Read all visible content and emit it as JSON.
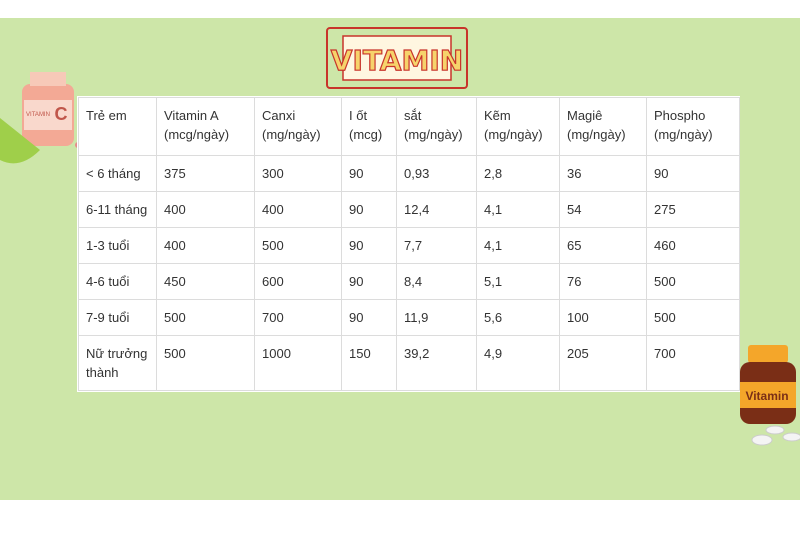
{
  "title": "VITAMIN",
  "decorations": {
    "left_bottle_label": "VITAMIN",
    "left_bottle_letter": "C",
    "right_bottle_label": "Vitamin"
  },
  "table": {
    "header": [
      "Trẻ em",
      "Vitamin A (mcg/ngày)",
      "Canxi (mg/ngày)",
      "I ốt (mcg)",
      "sắt (mg/ngày)",
      "Kẽm (mg/ngày)",
      "Magiê (mg/ngày)",
      "Phospho (mg/ngày)"
    ],
    "rows": [
      [
        "< 6 tháng",
        "375",
        "300",
        "90",
        "0,93",
        "2,8",
        "36",
        "90"
      ],
      [
        "6-11 tháng",
        "400",
        "400",
        "90",
        "12,4",
        "4,1",
        "54",
        "275"
      ],
      [
        "1-3 tuổi",
        "400",
        "500",
        "90",
        "7,7",
        "4,1",
        "65",
        "460"
      ],
      [
        "4-6 tuổi",
        "450",
        "600",
        "90",
        "8,4",
        "5,1",
        "76",
        "500"
      ],
      [
        "7-9 tuổi",
        "500",
        "700",
        "90",
        "11,9",
        "5,6",
        "100",
        "500"
      ],
      [
        "Nữ trưởng thành",
        "500",
        "1000",
        "150",
        "39,2",
        "4,9",
        "205",
        "700"
      ]
    ]
  }
}
